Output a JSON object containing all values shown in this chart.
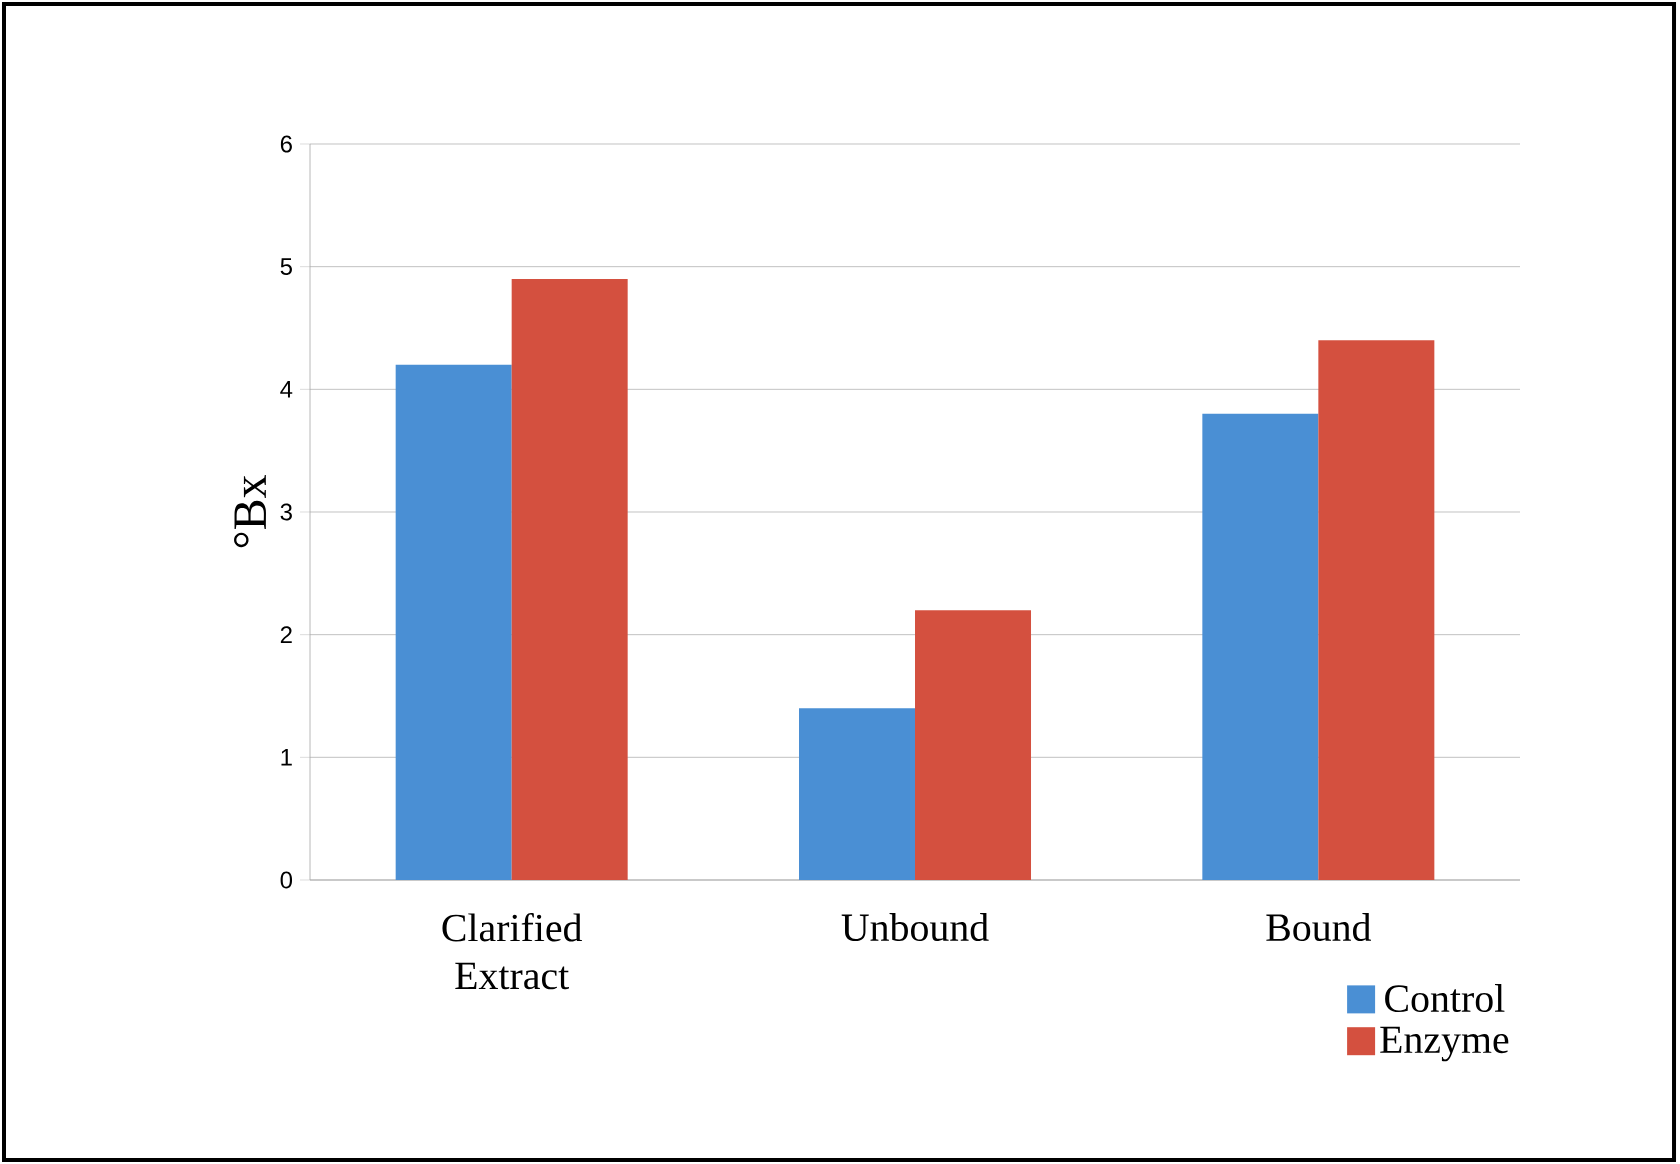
{
  "chart_data": {
    "type": "bar",
    "ylabel": "°Bx",
    "categories": [
      "Clarified Extract",
      "Unbound",
      "Bound"
    ],
    "series": [
      {
        "name": "Control",
        "color": "#4a8fd4",
        "values": [
          4.2,
          1.4,
          3.8
        ]
      },
      {
        "name": "Enzyme",
        "color": "#d4503f",
        "values": [
          4.9,
          2.2,
          4.4
        ]
      }
    ],
    "ylim": [
      0,
      6
    ],
    "yticks": [
      0,
      1,
      2,
      3,
      4,
      5,
      6
    ],
    "grid": "y",
    "legend": "bottom right"
  }
}
